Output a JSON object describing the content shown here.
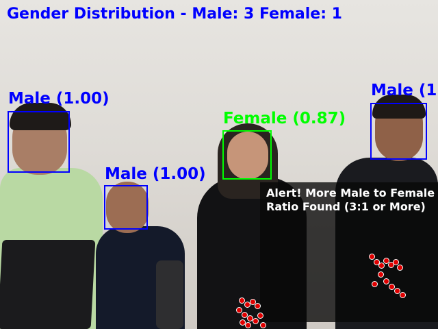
{
  "title": "Gender Distribution - Male: 3 Female: 1",
  "detections": [
    {
      "label": "Male (1.00)",
      "gender": "male"
    },
    {
      "label": "Male (1.00)",
      "gender": "male"
    },
    {
      "label": "Female (0.87)",
      "gender": "female"
    },
    {
      "label": "Male (1.",
      "gender": "male"
    }
  ],
  "alert": {
    "line1": "Alert! More Male to Female",
    "line2": "Ratio Found (3:1 or More)"
  },
  "colors": {
    "male_box": "#0000ff",
    "female_box": "#00ff00",
    "alert_background": "#080808",
    "landmark_dots": "#e00000"
  }
}
